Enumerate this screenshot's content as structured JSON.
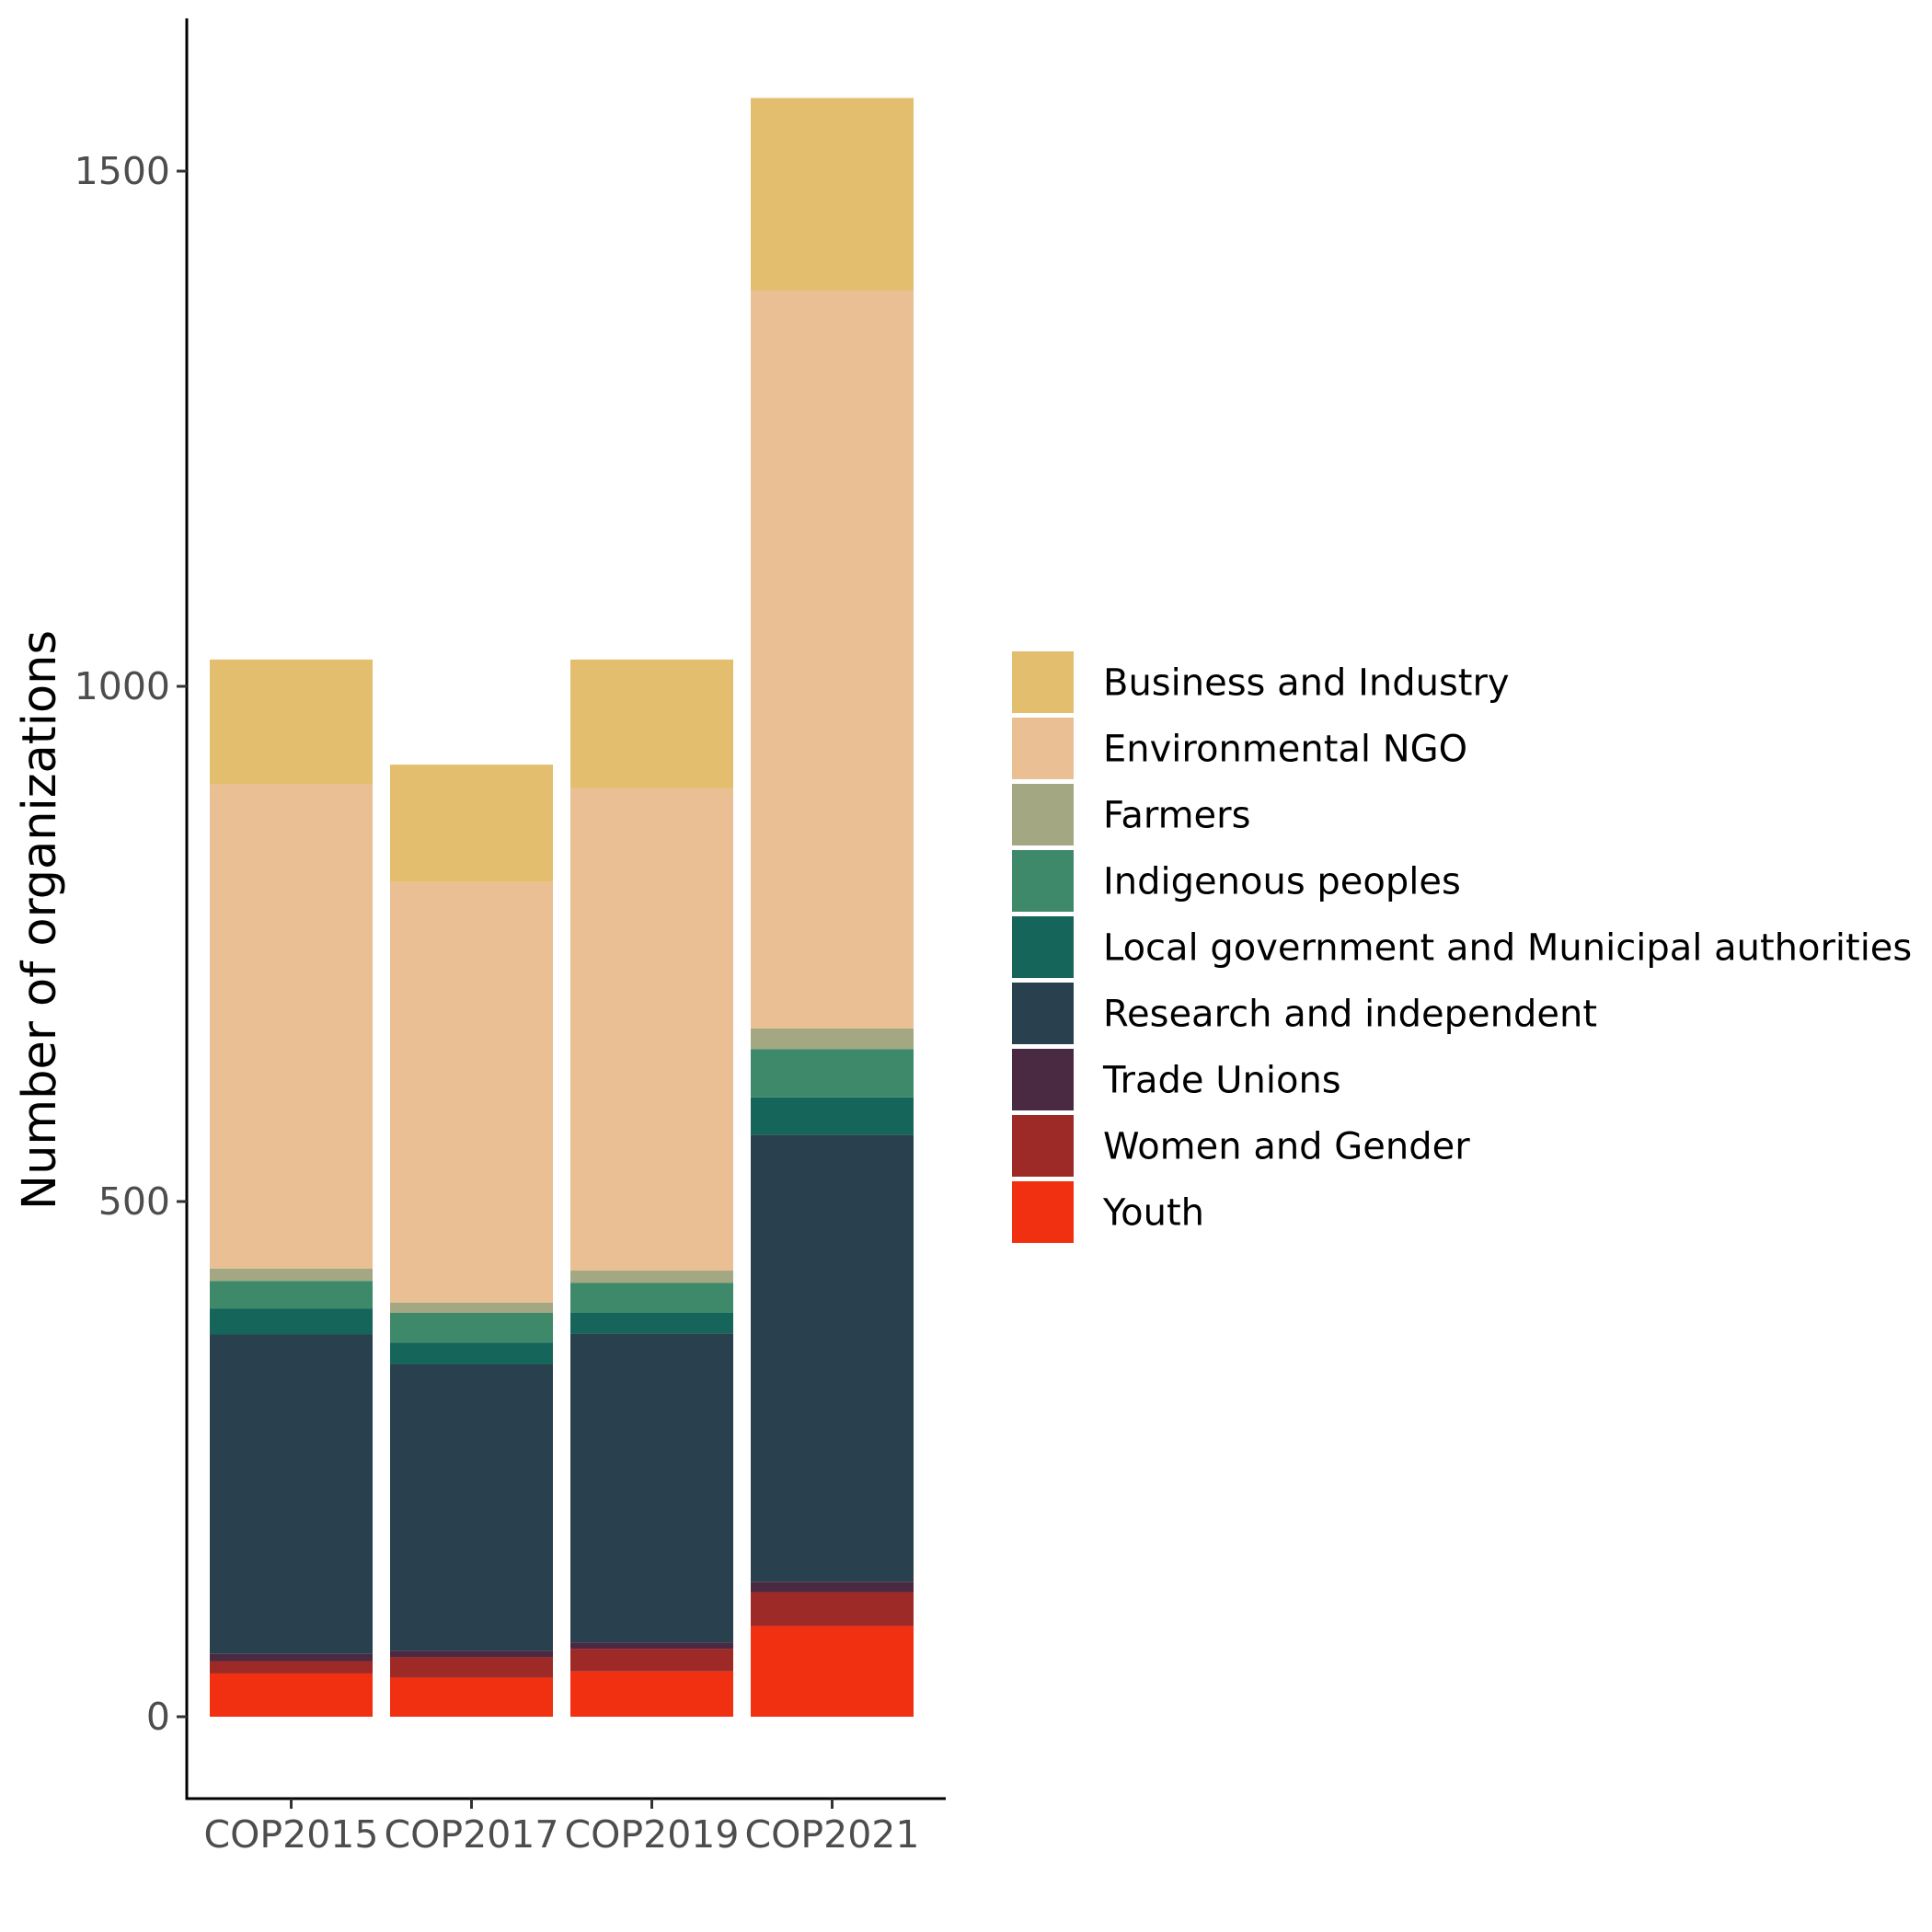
{
  "chart_data": {
    "type": "bar",
    "stacked": true,
    "title": "",
    "xlabel": "",
    "ylabel": "Number of organizations",
    "ylim": [
      -80,
      1650
    ],
    "yticks": [
      0,
      500,
      1000,
      1500
    ],
    "grid": false,
    "legend_position": "right",
    "categories": [
      "COP2015",
      "COP2017",
      "COP2019",
      "COP2021"
    ],
    "series": [
      {
        "name": "Youth",
        "color": "#F03010",
        "values": [
          42,
          38,
          44,
          88
        ]
      },
      {
        "name": "Women and Gender",
        "color": "#9E2A28",
        "values": [
          12,
          20,
          22,
          33
        ]
      },
      {
        "name": "Trade Unions",
        "color": "#4A2942",
        "values": [
          7,
          6,
          6,
          10
        ]
      },
      {
        "name": "Research and independent",
        "color": "#29414F",
        "values": [
          310,
          278,
          300,
          434
        ]
      },
      {
        "name": "Local government and Municipal authorities",
        "color": "#15655A",
        "values": [
          25,
          21,
          20,
          36
        ]
      },
      {
        "name": "Indigenous peoples",
        "color": "#3E896A",
        "values": [
          27,
          29,
          29,
          47
        ]
      },
      {
        "name": "Farmers",
        "color": "#A3A882",
        "values": [
          12,
          10,
          12,
          20
        ]
      },
      {
        "name": "Environmental NGO",
        "color": "#E9BF93",
        "values": [
          470,
          408,
          468,
          716
        ]
      },
      {
        "name": "Business and Industry",
        "color": "#E2BE6E",
        "values": [
          121,
          114,
          125,
          187
        ]
      }
    ]
  }
}
